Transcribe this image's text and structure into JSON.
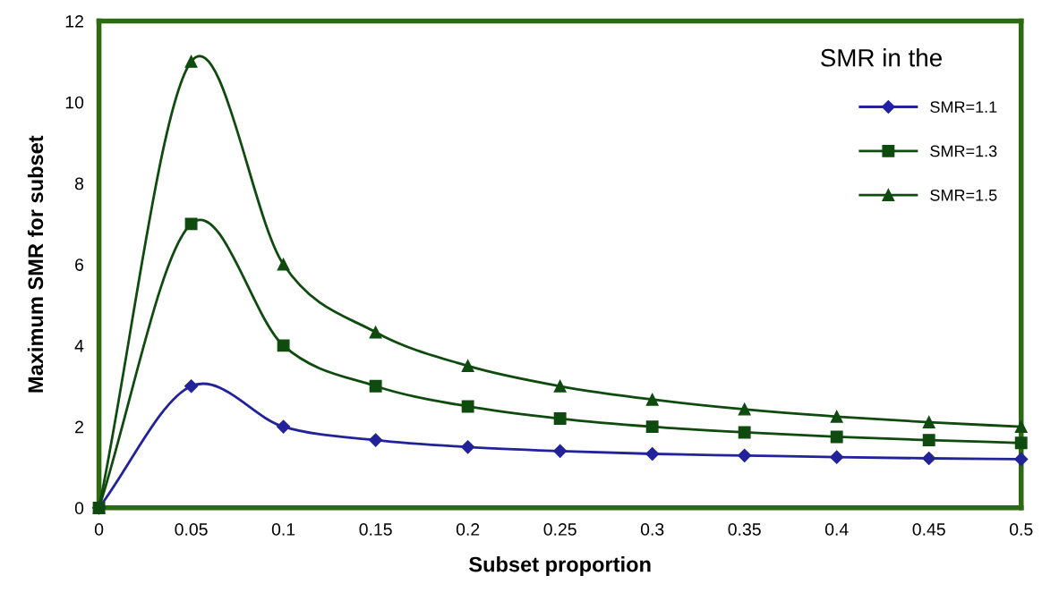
{
  "chart_data": {
    "type": "line",
    "xlabel": "Subset proportion",
    "ylabel": "Maximum SMR for subset",
    "x": [
      0,
      0.05,
      0.1,
      0.15,
      0.2,
      0.25,
      0.3,
      0.35,
      0.4,
      0.45,
      0.5
    ],
    "series": [
      {
        "name": "SMR=1.1",
        "color": "#22229a",
        "marker": "diamond",
        "values": [
          0,
          3,
          2,
          1.67,
          1.5,
          1.4,
          1.33,
          1.29,
          1.25,
          1.22,
          1.2
        ]
      },
      {
        "name": "SMR=1.3",
        "color": "#0f4a0f",
        "marker": "square",
        "values": [
          0,
          7,
          4,
          3,
          2.5,
          2.2,
          2,
          1.86,
          1.75,
          1.67,
          1.6
        ]
      },
      {
        "name": "SMR=1.5",
        "color": "#0f4a0f",
        "marker": "triangle",
        "values": [
          0,
          11,
          6,
          4.33,
          3.5,
          3,
          2.67,
          2.43,
          2.25,
          2.11,
          2
        ]
      }
    ],
    "xlim": [
      0,
      0.5
    ],
    "xticks": [
      0,
      0.05,
      0.1,
      0.15,
      0.2,
      0.25,
      0.3,
      0.35,
      0.4,
      0.45,
      0.5
    ],
    "ylim": [
      0,
      12
    ],
    "yticks": [
      0,
      2,
      4,
      6,
      8,
      10,
      12
    ],
    "annotations": [
      "SMR in the"
    ],
    "legend": "right",
    "grid": false,
    "line_style": "solid"
  }
}
